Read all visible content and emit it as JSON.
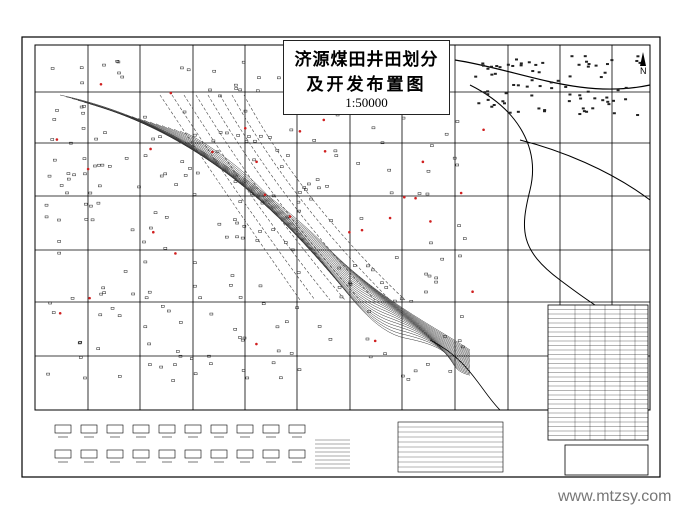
{
  "map": {
    "title_line1": "济源煤田井田划分",
    "title_line2": "及开发布置图",
    "scale": "1:50000",
    "north_label": "N",
    "colors": {
      "lines": "#222222",
      "highlights": "#d02020",
      "background": "#ffffff"
    }
  },
  "watermark": "www.mtzsy.com"
}
